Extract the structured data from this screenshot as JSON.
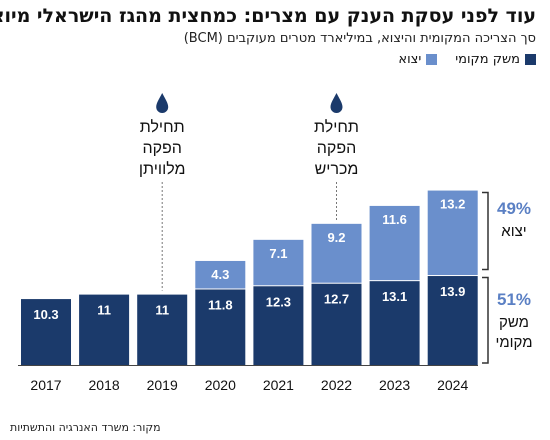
{
  "title": "עוד לפני עסקת הענק עם מצרים: כמחצית מהגז הישראלי מיוצא",
  "subtitle": "סך הצריכה המקומית והיצוא, במיליארד מטרים מעוקבים (BCM)",
  "source": "מקור: משרד האנרגיה והתשתיות",
  "colors": {
    "domestic": "#1b3a6b",
    "export": "#6a8fcc",
    "pct": "#5b80c4"
  },
  "chart_data": {
    "type": "bar",
    "stacked": true,
    "categories": [
      "2017",
      "2018",
      "2019",
      "2020",
      "2021",
      "2022",
      "2023",
      "2024"
    ],
    "series": [
      {
        "name": "משק מקומי",
        "values": [
          10.3,
          11,
          11,
          11.8,
          12.3,
          12.7,
          13.1,
          13.9
        ]
      },
      {
        "name": "יצוא",
        "values": [
          0,
          0,
          0,
          4.3,
          7.1,
          9.2,
          11.6,
          13.2
        ]
      }
    ],
    "ylim": [
      0,
      30
    ],
    "grid": false,
    "annotations": [
      {
        "category": "2019",
        "lines": [
          "תחילת",
          "הפקה",
          "מלוויתן"
        ],
        "icon": "drop-icon"
      },
      {
        "category": "2022",
        "lines": [
          "תחילת",
          "הפקה",
          "מכריש"
        ],
        "icon": "drop-icon"
      }
    ],
    "shares": [
      {
        "series": "יצוא",
        "pct": "49%",
        "label_lines": [
          "יצוא"
        ]
      },
      {
        "series": "משק מקומי",
        "pct": "51%",
        "label_lines": [
          "משק",
          "מקומי"
        ]
      }
    ]
  }
}
